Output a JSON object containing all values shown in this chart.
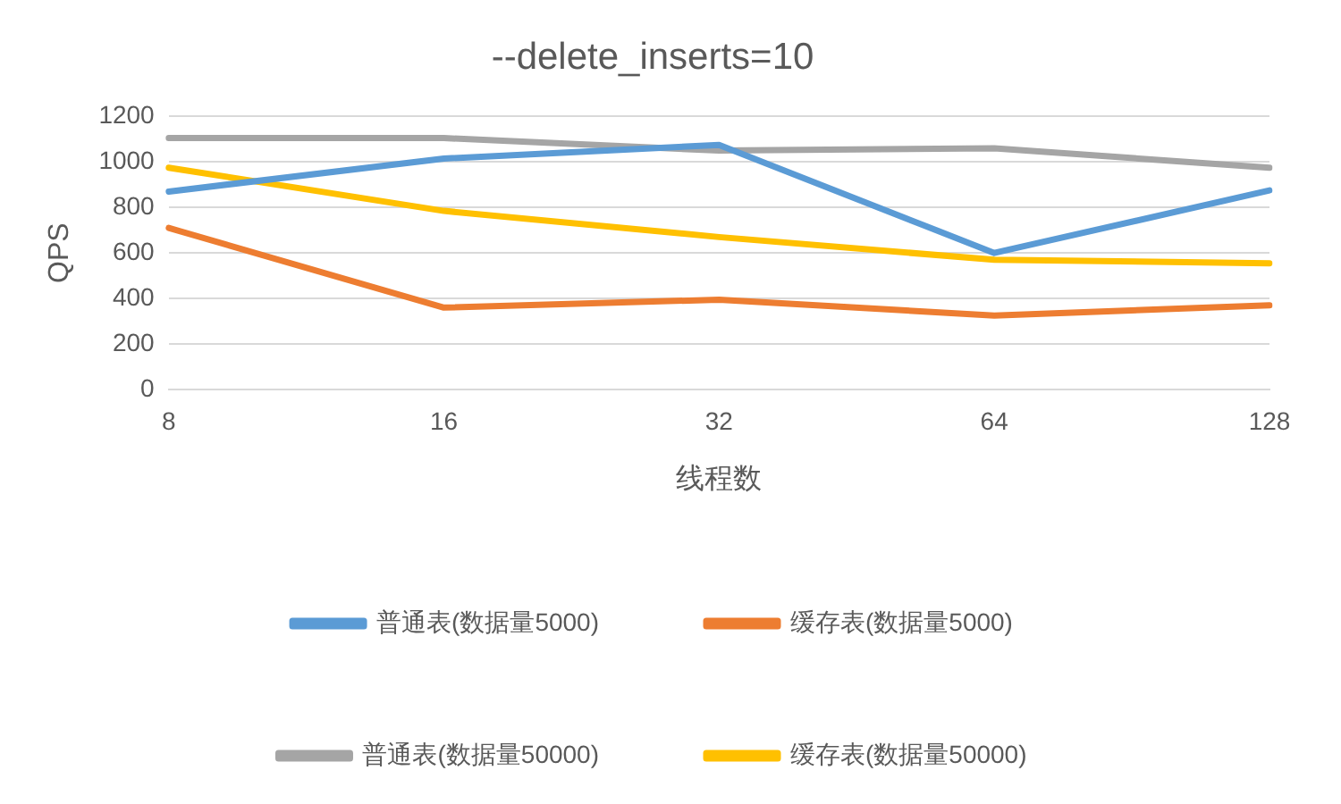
{
  "chart_data": {
    "type": "line",
    "title": "--delete_inserts=10",
    "xlabel": "线程数",
    "ylabel": "QPS",
    "categories": [
      "8",
      "16",
      "32",
      "64",
      "128"
    ],
    "series": [
      {
        "name": "普通表(数据量5000)",
        "color": "#5b9bd5",
        "values": [
          870,
          1015,
          1075,
          600,
          875
        ]
      },
      {
        "name": "缓存表(数据量5000)",
        "color": "#ed7d31",
        "values": [
          710,
          360,
          395,
          325,
          370
        ]
      },
      {
        "name": "普通表(数据量50000)",
        "color": "#a5a5a5",
        "values": [
          1105,
          1105,
          1050,
          1060,
          975
        ]
      },
      {
        "name": "缓存表(数据量50000)",
        "color": "#ffc000",
        "values": [
          975,
          785,
          670,
          570,
          555
        ]
      }
    ],
    "ylim": [
      0,
      1200
    ],
    "yticks": [
      0,
      200,
      400,
      600,
      800,
      1000,
      1200
    ],
    "grid": "y",
    "legend": "bottom",
    "marker": "none",
    "line_style": "solid"
  }
}
